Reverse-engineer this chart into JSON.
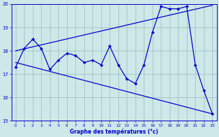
{
  "hours": [
    0,
    1,
    2,
    3,
    4,
    5,
    6,
    7,
    8,
    9,
    10,
    11,
    12,
    13,
    14,
    15,
    16,
    17,
    18,
    19,
    20,
    21,
    22,
    23
  ],
  "temps": [
    17.3,
    18.1,
    18.5,
    18.1,
    17.2,
    17.6,
    17.9,
    17.8,
    17.5,
    17.6,
    17.4,
    18.2,
    17.4,
    16.8,
    16.6,
    17.4,
    18.8,
    19.9,
    19.8,
    19.8,
    19.9,
    17.4,
    16.3,
    15.3
  ],
  "trend_up_start": 18.0,
  "trend_up_end": 19.95,
  "trend_down_start": 17.5,
  "trend_down_end": 15.3,
  "line_color": "#0000cc",
  "bg_color": "#cce8e8",
  "grid_color": "#99bbbb",
  "xlabel": "Graphe des températures (°c)",
  "ylim": [
    15,
    20
  ],
  "xlim": [
    -0.5,
    23.5
  ],
  "yticks": [
    15,
    16,
    17,
    18,
    19,
    20
  ],
  "axis_label_color": "#0000cc"
}
